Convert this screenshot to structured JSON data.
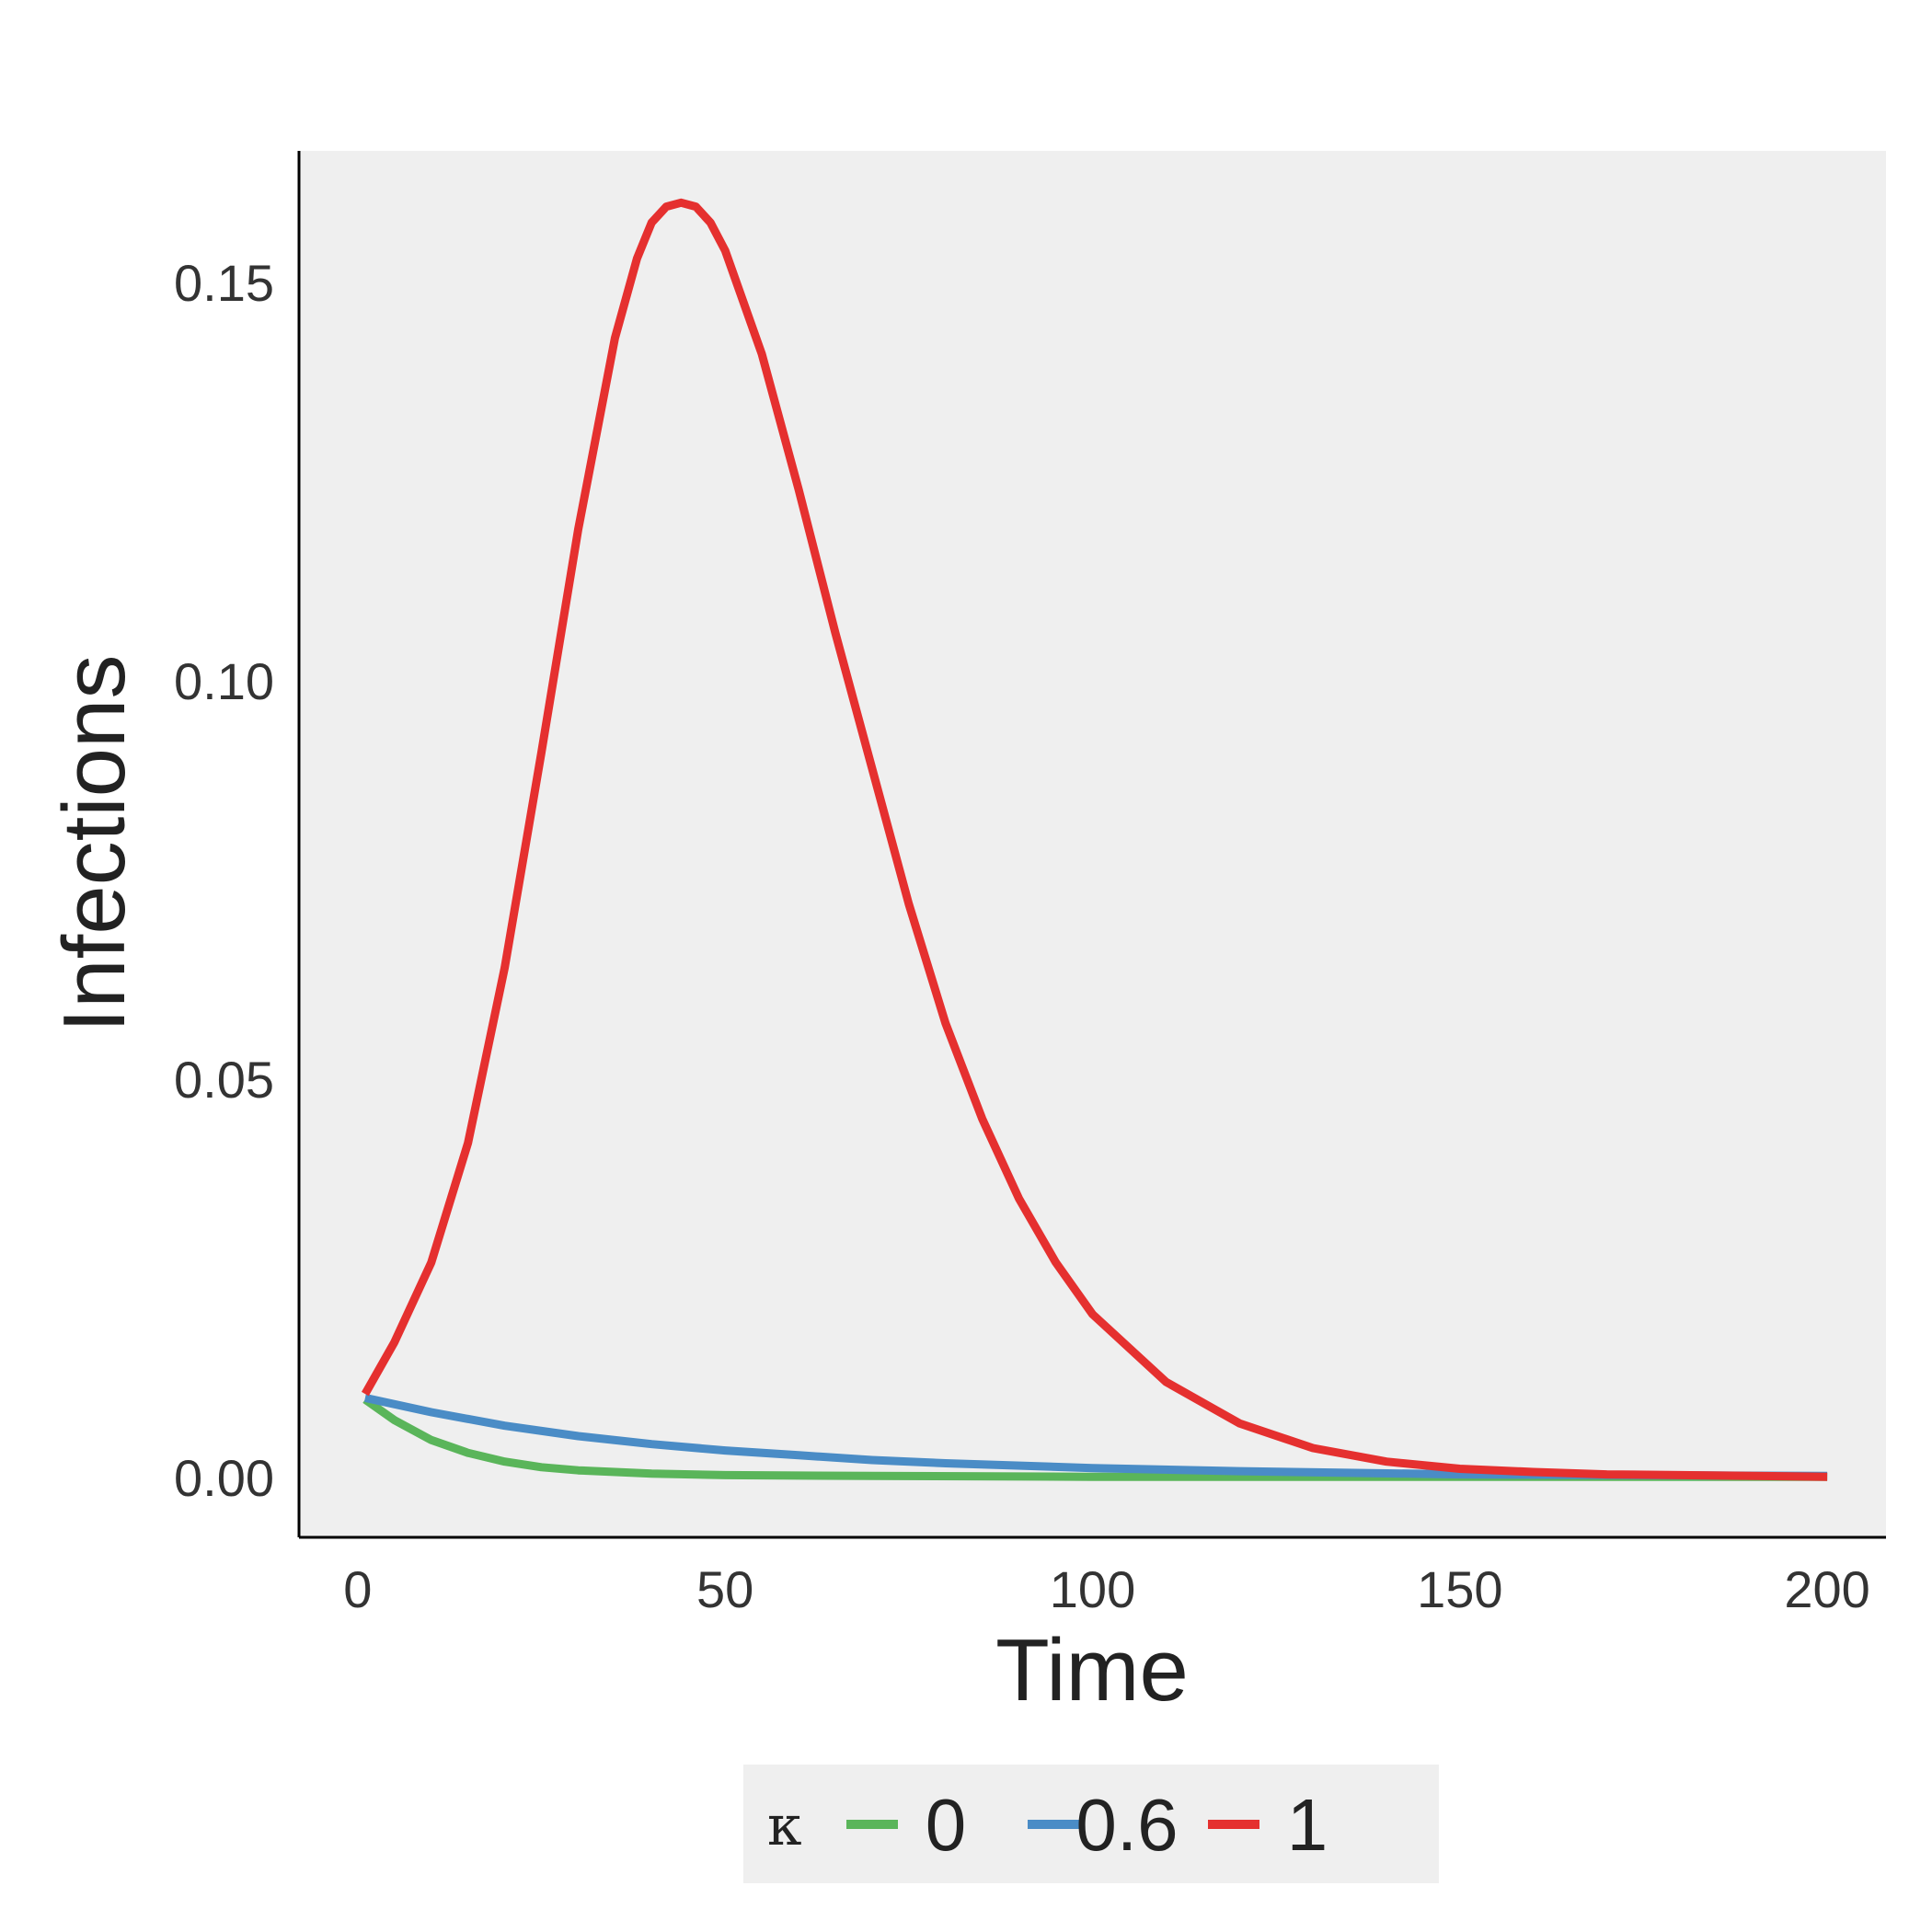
{
  "chart_data": {
    "type": "line",
    "title": "",
    "xlabel": "Time",
    "ylabel": "Infections",
    "xlim": [
      -8,
      208
    ],
    "ylim": [
      -0.0075,
      0.1665
    ],
    "xticks": [
      0,
      50,
      100,
      150,
      200
    ],
    "xtick_labels": [
      "0",
      "50",
      "100",
      "150",
      "200"
    ],
    "yticks": [
      0.0,
      0.05,
      0.1,
      0.15
    ],
    "ytick_labels": [
      "0.00",
      "0.05",
      "0.10",
      "0.15"
    ],
    "grid": false,
    "background_color": "#efefef",
    "legend": {
      "title": "κ",
      "position": "bottom",
      "background_color": "#efefef"
    },
    "series": [
      {
        "name": "0",
        "color": "#5ab55a",
        "x": [
          1,
          5,
          10,
          15,
          20,
          25,
          30,
          40,
          50,
          70,
          100,
          150,
          200
        ],
        "y": [
          0.0098,
          0.0072,
          0.0047,
          0.0031,
          0.002,
          0.0013,
          0.0009,
          0.0005,
          0.0003,
          0.0002,
          0.0001,
          0.0001,
          0.0001
        ]
      },
      {
        "name": "0.6",
        "color": "#4a8cc6",
        "x": [
          1,
          10,
          20,
          30,
          40,
          50,
          60,
          70,
          80,
          100,
          120,
          150,
          200
        ],
        "y": [
          0.01,
          0.0082,
          0.0065,
          0.0052,
          0.0042,
          0.0034,
          0.0028,
          0.0022,
          0.0018,
          0.0012,
          0.0008,
          0.0004,
          0.0002
        ]
      },
      {
        "name": "1",
        "color": "#e5302f",
        "x": [
          1,
          5,
          10,
          15,
          20,
          25,
          30,
          35,
          38,
          40,
          42,
          44,
          46,
          48,
          50,
          55,
          60,
          65,
          70,
          75,
          80,
          85,
          90,
          95,
          100,
          110,
          120,
          130,
          140,
          150,
          160,
          170,
          180,
          190,
          200
        ],
        "y": [
          0.0105,
          0.017,
          0.027,
          0.042,
          0.064,
          0.091,
          0.119,
          0.143,
          0.153,
          0.1575,
          0.1595,
          0.16,
          0.1595,
          0.1575,
          0.154,
          0.141,
          0.124,
          0.106,
          0.089,
          0.072,
          0.057,
          0.045,
          0.035,
          0.027,
          0.0205,
          0.012,
          0.0068,
          0.0037,
          0.002,
          0.0011,
          0.0007,
          0.0004,
          0.0003,
          0.0002,
          0.0001
        ]
      }
    ]
  }
}
